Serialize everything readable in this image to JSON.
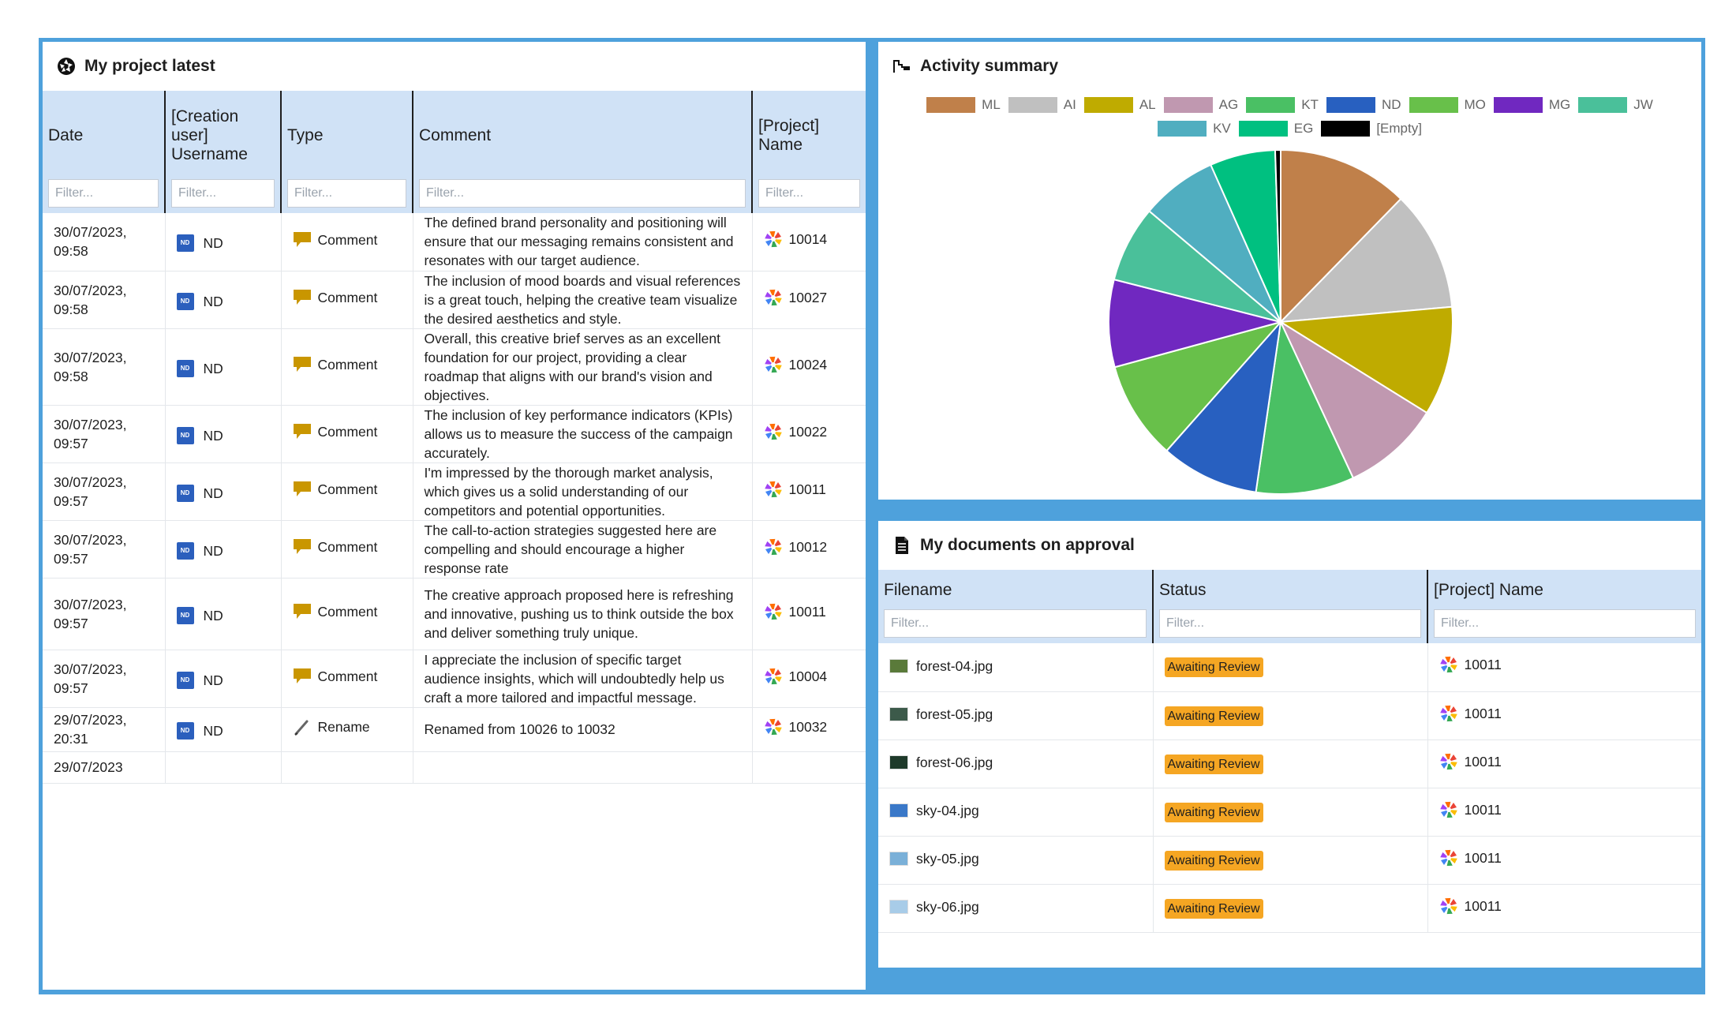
{
  "latest": {
    "title": "My project latest",
    "columns": [
      "Date",
      "[Creation user] Username",
      "Type",
      "Comment",
      "[Project] Name"
    ],
    "filter_placeholder": "Filter...",
    "rows": [
      {
        "date": "30/07/2023, 09:58",
        "user": "ND",
        "type": "Comment",
        "comment": "The defined brand personality and positioning will ensure that our messaging remains consistent and resonates with our target audience.",
        "project": "10014"
      },
      {
        "date": "30/07/2023, 09:58",
        "user": "ND",
        "type": "Comment",
        "comment": "The inclusion of mood boards and visual references is a great touch, helping the creative team visualize the desired aesthetics and style.",
        "project": "10027"
      },
      {
        "date": "30/07/2023, 09:58",
        "user": "ND",
        "type": "Comment",
        "comment": "Overall, this creative brief serves as an excellent foundation for our project, providing a clear roadmap that aligns with our brand's vision and objectives.",
        "project": "10024"
      },
      {
        "date": "30/07/2023, 09:57",
        "user": "ND",
        "type": "Comment",
        "comment": "The inclusion of key performance indicators (KPIs) allows us to measure the success of the campaign accurately.",
        "project": "10022"
      },
      {
        "date": "30/07/2023, 09:57",
        "user": "ND",
        "type": "Comment",
        "comment": "I'm impressed by the thorough market analysis, which gives us a solid understanding of our competitors and potential opportunities.",
        "project": "10011"
      },
      {
        "date": "30/07/2023, 09:57",
        "user": "ND",
        "type": "Comment",
        "comment": "The call-to-action strategies suggested here are compelling and should encourage a higher response rate",
        "project": "10012"
      },
      {
        "date": "30/07/2023, 09:57",
        "user": "ND",
        "type": "Comment",
        "comment": "The creative approach proposed here is refreshing and innovative, pushing us to think outside the box and deliver something truly unique.",
        "project": "10011"
      },
      {
        "date": "30/07/2023, 09:57",
        "user": "ND",
        "type": "Comment",
        "comment": "I appreciate the inclusion of specific target audience insights, which will undoubtedly help us craft a more tailored and impactful message.",
        "project": "10004"
      },
      {
        "date": "29/07/2023, 20:31",
        "user": "ND",
        "type": "Rename",
        "comment": "Renamed from 10026 to 10032",
        "project": "10032"
      },
      {
        "date": "29/07/2023",
        "user": "",
        "type": "",
        "comment": "",
        "project": ""
      }
    ]
  },
  "activity": {
    "title": "Activity summary",
    "chart_data": {
      "type": "pie",
      "labels": [
        "ML",
        "AI",
        "AL",
        "AG",
        "KT",
        "ND",
        "MO",
        "MG",
        "JW",
        "KV",
        "EG",
        "[Empty]"
      ],
      "values": [
        12,
        11,
        10,
        9,
        9,
        9,
        9,
        8,
        7,
        7,
        6,
        0.5
      ],
      "colors": [
        "#c0804a",
        "#c0c0c0",
        "#bfab00",
        "#c098b0",
        "#4ac064",
        "#2860c0",
        "#68c04a",
        "#7028c0",
        "#4ac09a",
        "#50aec0",
        "#00c080",
        "#000000"
      ],
      "legend_position": "top"
    }
  },
  "docs": {
    "title": "My documents on approval",
    "columns": [
      "Filename",
      "Status",
      "[Project] Name"
    ],
    "filter_placeholder": "Filter...",
    "rows": [
      {
        "file": "forest-04.jpg",
        "status": "Awaiting Review",
        "project": "10011",
        "thumb": "#5a7a3a"
      },
      {
        "file": "forest-05.jpg",
        "status": "Awaiting Review",
        "project": "10011",
        "thumb": "#3c5a4a"
      },
      {
        "file": "forest-06.jpg",
        "status": "Awaiting Review",
        "project": "10011",
        "thumb": "#1e3a2a"
      },
      {
        "file": "sky-04.jpg",
        "status": "Awaiting Review",
        "project": "10011",
        "thumb": "#3a78c8"
      },
      {
        "file": "sky-05.jpg",
        "status": "Awaiting Review",
        "project": "10011",
        "thumb": "#7ab0d8"
      },
      {
        "file": "sky-06.jpg",
        "status": "Awaiting Review",
        "project": "10011",
        "thumb": "#a8cce8"
      }
    ]
  }
}
